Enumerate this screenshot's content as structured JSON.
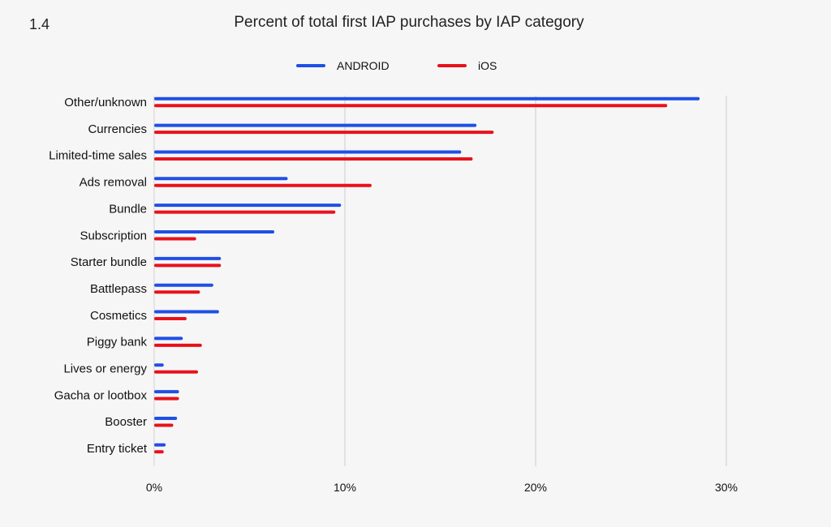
{
  "chart_number": "1.4",
  "colors": {
    "android": "#1f4fe6",
    "ios": "#e8111b",
    "grid": "#d3d3d3",
    "background": "#f6f6f6"
  },
  "chart_data": {
    "type": "bar",
    "orientation": "horizontal",
    "title": "Percent of total first IAP purchases by IAP category",
    "xlabel": "",
    "ylabel": "",
    "xlim": [
      0,
      30
    ],
    "xticks": [
      0,
      10,
      20,
      30
    ],
    "xtick_labels": [
      "0%",
      "10%",
      "20%",
      "30%"
    ],
    "grid": "vertical",
    "legend_position": "top-center",
    "categories": [
      "Other/unknown",
      "Currencies",
      "Limited-time sales",
      "Ads removal",
      "Bundle",
      "Subscription",
      "Starter bundle",
      "Battlepass",
      "Cosmetics",
      "Piggy bank",
      "Lives or energy",
      "Gacha or lootbox",
      "Booster",
      "Entry ticket"
    ],
    "series": [
      {
        "name": "ANDROID",
        "color": "#1f4fe6",
        "values": [
          28.6,
          16.9,
          16.1,
          7.0,
          9.8,
          6.3,
          3.5,
          3.1,
          3.4,
          1.5,
          0.5,
          1.3,
          1.2,
          0.6
        ]
      },
      {
        "name": "iOS",
        "color": "#e8111b",
        "values": [
          26.9,
          17.8,
          16.7,
          11.4,
          9.5,
          2.2,
          3.5,
          2.4,
          1.7,
          2.5,
          2.3,
          1.3,
          1.0,
          0.5
        ]
      }
    ]
  }
}
